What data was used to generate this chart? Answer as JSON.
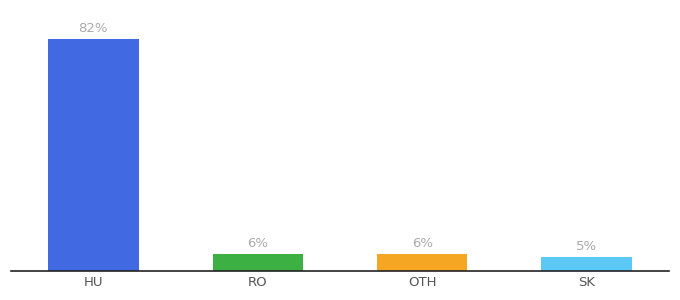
{
  "categories": [
    "HU",
    "RO",
    "OTH",
    "SK"
  ],
  "values": [
    82,
    6,
    6,
    5
  ],
  "bar_colors": [
    "#4169e1",
    "#3cb043",
    "#f5a623",
    "#5bc8f5"
  ],
  "label_color": "#aaaaaa",
  "axis_color": "#222222",
  "tick_color": "#555555",
  "background_color": "#ffffff",
  "ylim": [
    0,
    92
  ],
  "bar_width": 0.55,
  "label_fontsize": 9.5,
  "tick_fontsize": 9.5,
  "x_positions": [
    0.5,
    1.5,
    2.5,
    3.5
  ],
  "xlim": [
    0,
    4.0
  ]
}
